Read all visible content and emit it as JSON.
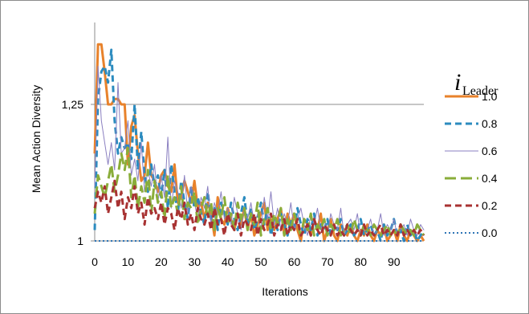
{
  "chart_data": {
    "type": "line",
    "title": "",
    "xlabel": "Iterations",
    "ylabel": "Mean Action Diversity",
    "xlim": [
      0,
      99
    ],
    "ylim": [
      1,
      1.4
    ],
    "yticks": [
      {
        "value": 1,
        "label": "1"
      },
      {
        "value": 1.25,
        "label": "1,25"
      }
    ],
    "xticks": [
      {
        "value": 0,
        "label": "0"
      },
      {
        "value": 10,
        "label": "10"
      },
      {
        "value": 20,
        "label": "20"
      },
      {
        "value": 30,
        "label": "30"
      },
      {
        "value": 40,
        "label": "40"
      },
      {
        "value": 50,
        "label": "50"
      },
      {
        "value": 60,
        "label": "60"
      },
      {
        "value": 70,
        "label": "70"
      },
      {
        "value": 80,
        "label": "80"
      },
      {
        "value": 90,
        "label": "90"
      }
    ],
    "grid": "horizontal line at 1,25",
    "legend": {
      "position": "right",
      "title_main": "i",
      "title_sub": "Leader"
    },
    "series": [
      {
        "name": "1.0",
        "color": "#e8822b",
        "dash": "solid",
        "width": 3,
        "values": [
          1.16,
          1.36,
          1.36,
          1.31,
          1.25,
          1.25,
          1.26,
          1.26,
          1.25,
          1.25,
          1.14,
          1.21,
          1.23,
          1.16,
          1.11,
          1.12,
          1.18,
          1.12,
          1.11,
          1.09,
          1.12,
          1.13,
          1.1,
          1.09,
          1.14,
          1.07,
          1.08,
          1.11,
          1.09,
          1.07,
          1.11,
          1.06,
          1.07,
          1.04,
          1.07,
          1.05,
          1.01,
          1.08,
          1.04,
          1.03,
          1.06,
          1.04,
          1.02,
          1.05,
          1.03,
          1.06,
          1.02,
          1.05,
          1.01,
          1.03,
          1.05,
          1.07,
          1.02,
          1.04,
          1.02,
          1.04,
          1.06,
          1.01,
          1.05,
          1.03,
          1.05,
          1.02,
          1.0,
          1.04,
          1.03,
          1.01,
          1.04,
          1.02,
          1.05,
          1.0,
          1.02,
          1.04,
          1.01,
          1.0,
          1.03,
          1.02,
          1.01,
          1.03,
          1.01,
          1.0,
          1.02,
          1.01,
          1.03,
          1.01,
          1.0,
          1.02,
          1.01,
          1.03,
          1.0,
          1.01,
          1.02,
          1.0,
          1.03,
          1.01,
          1.0,
          1.02,
          1.01,
          1.0,
          1.01,
          1.0
        ]
      },
      {
        "name": "0.8",
        "color": "#2b8bbf",
        "dash": "dashed",
        "width": 3,
        "values": [
          1.02,
          1.26,
          1.31,
          1.32,
          1.29,
          1.35,
          1.22,
          1.16,
          1.19,
          1.17,
          1.18,
          1.15,
          1.25,
          1.13,
          1.2,
          1.12,
          1.09,
          1.14,
          1.1,
          1.12,
          1.08,
          1.13,
          1.06,
          1.14,
          1.09,
          1.05,
          1.11,
          1.07,
          1.04,
          1.1,
          1.06,
          1.08,
          1.05,
          1.03,
          1.09,
          1.04,
          1.06,
          1.02,
          1.07,
          1.05,
          1.03,
          1.07,
          1.04,
          1.02,
          1.05,
          1.08,
          1.03,
          1.06,
          1.02,
          1.04,
          1.07,
          1.03,
          1.06,
          1.01,
          1.04,
          1.02,
          1.05,
          1.03,
          1.01,
          1.04,
          1.02,
          1.06,
          1.03,
          1.01,
          1.04,
          1.02,
          1.05,
          1.01,
          1.03,
          1.02,
          1.04,
          1.01,
          1.03,
          1.02,
          1.04,
          1.01,
          1.02,
          1.03,
          1.01,
          1.02,
          1.04,
          1.01,
          1.02,
          1.03,
          1.01,
          1.02,
          1.0,
          1.03,
          1.01,
          1.02,
          1.04,
          1.01,
          1.02,
          1.0,
          1.03,
          1.01,
          1.02,
          1.0,
          1.01,
          1.02
        ]
      },
      {
        "name": "0.6",
        "color": "#8a7fc0",
        "dash": "solid",
        "width": 1,
        "values": [
          1.1,
          1.32,
          1.22,
          1.18,
          1.14,
          1.18,
          1.13,
          1.29,
          1.16,
          1.17,
          1.22,
          1.12,
          1.15,
          1.11,
          1.18,
          1.09,
          1.13,
          1.1,
          1.14,
          1.07,
          1.12,
          1.08,
          1.19,
          1.06,
          1.11,
          1.09,
          1.06,
          1.12,
          1.05,
          1.1,
          1.07,
          1.04,
          1.08,
          1.06,
          1.1,
          1.03,
          1.07,
          1.05,
          1.09,
          1.04,
          1.06,
          1.03,
          1.08,
          1.05,
          1.02,
          1.06,
          1.04,
          1.07,
          1.03,
          1.05,
          1.02,
          1.08,
          1.04,
          1.09,
          1.03,
          1.06,
          1.02,
          1.05,
          1.03,
          1.07,
          1.02,
          1.04,
          1.06,
          1.03,
          1.01,
          1.05,
          1.03,
          1.06,
          1.02,
          1.04,
          1.01,
          1.05,
          1.03,
          1.02,
          1.06,
          1.01,
          1.03,
          1.04,
          1.02,
          1.05,
          1.01,
          1.03,
          1.02,
          1.04,
          1.01,
          1.02,
          1.05,
          1.01,
          1.03,
          1.02,
          1.04,
          1.01,
          1.02,
          1.03,
          1.01,
          1.04,
          1.02,
          1.01,
          1.03,
          1.02
        ]
      },
      {
        "name": "0.4",
        "color": "#8aad3a",
        "dash": "long-dash",
        "width": 3,
        "values": [
          1.05,
          1.12,
          1.1,
          1.08,
          1.11,
          1.14,
          1.09,
          1.12,
          1.16,
          1.13,
          1.17,
          1.08,
          1.12,
          1.06,
          1.1,
          1.07,
          1.13,
          1.05,
          1.11,
          1.07,
          1.09,
          1.04,
          1.12,
          1.06,
          1.08,
          1.05,
          1.1,
          1.04,
          1.07,
          1.06,
          1.09,
          1.03,
          1.06,
          1.08,
          1.04,
          1.07,
          1.02,
          1.06,
          1.04,
          1.08,
          1.03,
          1.05,
          1.02,
          1.07,
          1.04,
          1.06,
          1.02,
          1.05,
          1.03,
          1.07,
          1.01,
          1.04,
          1.06,
          1.02,
          1.05,
          1.03,
          1.06,
          1.01,
          1.04,
          1.02,
          1.05,
          1.03,
          1.01,
          1.04,
          1.02,
          1.05,
          1.01,
          1.03,
          1.02,
          1.04,
          1.01,
          1.03,
          1.02,
          1.04,
          1.01,
          1.02,
          1.03,
          1.01,
          1.04,
          1.02,
          1.01,
          1.03,
          1.02,
          1.01,
          1.03,
          1.02,
          1.01,
          1.02,
          1.03,
          1.01,
          1.02,
          1.01,
          1.03,
          1.02,
          1.01,
          1.02,
          1.01,
          1.03,
          1.02,
          1.01
        ]
      },
      {
        "name": "0.2",
        "color": "#a83232",
        "dash": "dashed",
        "width": 3,
        "values": [
          1.06,
          1.09,
          1.07,
          1.1,
          1.05,
          1.08,
          1.11,
          1.06,
          1.09,
          1.04,
          1.08,
          1.06,
          1.1,
          1.05,
          1.07,
          1.03,
          1.08,
          1.05,
          1.06,
          1.04,
          1.07,
          1.03,
          1.06,
          1.05,
          1.02,
          1.06,
          1.04,
          1.07,
          1.03,
          1.05,
          1.02,
          1.06,
          1.04,
          1.03,
          1.05,
          1.02,
          1.06,
          1.03,
          1.04,
          1.01,
          1.05,
          1.03,
          1.02,
          1.05,
          1.01,
          1.04,
          1.03,
          1.02,
          1.05,
          1.01,
          1.04,
          1.02,
          1.03,
          1.05,
          1.01,
          1.03,
          1.02,
          1.04,
          1.01,
          1.03,
          1.02,
          1.04,
          1.01,
          1.02,
          1.03,
          1.01,
          1.04,
          1.02,
          1.01,
          1.03,
          1.02,
          1.01,
          1.03,
          1.01,
          1.02,
          1.01,
          1.03,
          1.02,
          1.01,
          1.02,
          1.01,
          1.03,
          1.01,
          1.02,
          1.01,
          1.02,
          1.03,
          1.01,
          1.02,
          1.01,
          1.02,
          1.01,
          1.03,
          1.01,
          1.02,
          1.01,
          1.02,
          1.01,
          1.02,
          1.01
        ]
      },
      {
        "name": "0.0",
        "color": "#2e75b6",
        "dash": "dotted",
        "width": 2,
        "values": [
          1,
          1,
          1,
          1,
          1,
          1,
          1,
          1,
          1,
          1,
          1,
          1,
          1,
          1,
          1,
          1,
          1,
          1,
          1,
          1,
          1,
          1,
          1,
          1,
          1,
          1,
          1,
          1,
          1,
          1,
          1,
          1,
          1,
          1,
          1,
          1,
          1,
          1,
          1,
          1,
          1,
          1,
          1,
          1,
          1,
          1,
          1,
          1,
          1,
          1,
          1,
          1,
          1,
          1,
          1,
          1,
          1,
          1,
          1,
          1,
          1,
          1,
          1,
          1,
          1,
          1,
          1,
          1,
          1,
          1,
          1,
          1,
          1,
          1,
          1,
          1,
          1,
          1,
          1,
          1,
          1,
          1,
          1,
          1,
          1,
          1,
          1,
          1,
          1,
          1,
          1,
          1,
          1,
          1,
          1,
          1,
          1,
          1,
          1,
          1
        ]
      }
    ]
  }
}
